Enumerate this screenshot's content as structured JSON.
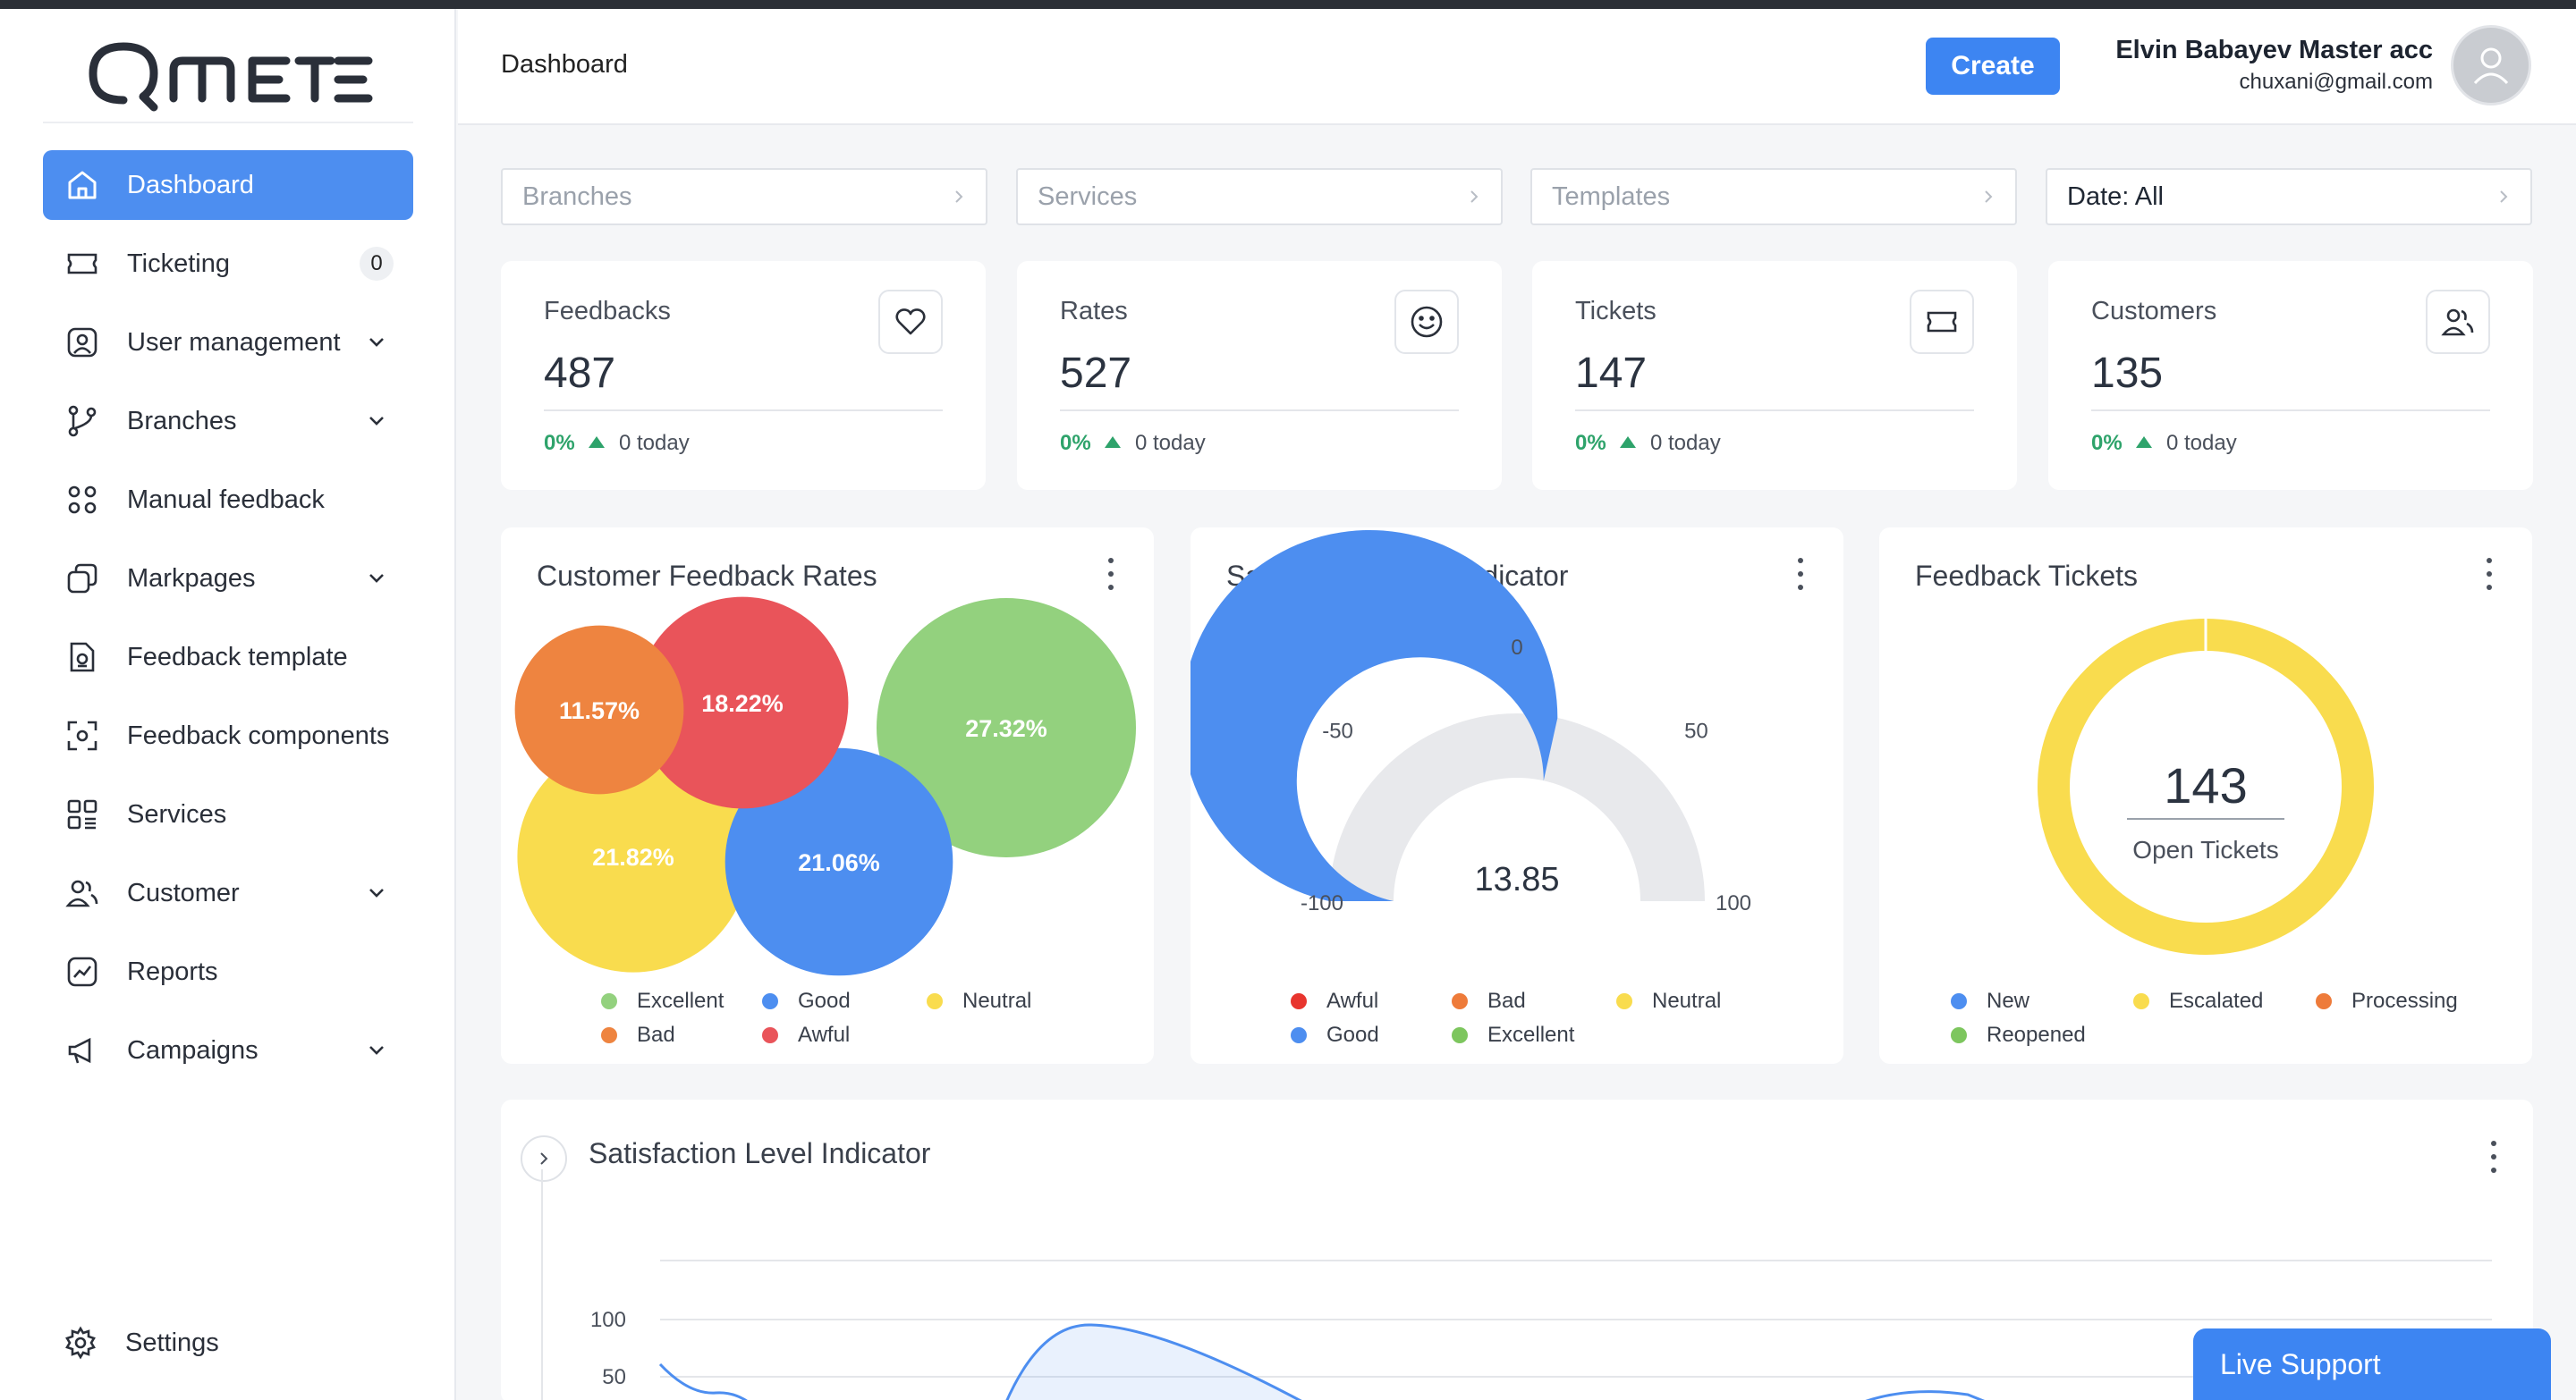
{
  "app": {
    "logo_text": "QMETER"
  },
  "sidebar": {
    "items": [
      {
        "label": "Dashboard",
        "icon": "home-icon",
        "active": true
      },
      {
        "label": "Ticketing",
        "icon": "ticket-icon",
        "badge": "0"
      },
      {
        "label": "User management",
        "icon": "user-icon",
        "expandable": true
      },
      {
        "label": "Branches",
        "icon": "branch-icon",
        "expandable": true
      },
      {
        "label": "Manual feedback",
        "icon": "grid-circles-icon"
      },
      {
        "label": "Markpages",
        "icon": "markpages-icon",
        "expandable": true
      },
      {
        "label": "Feedback template",
        "icon": "template-icon"
      },
      {
        "label": "Feedback components",
        "icon": "components-icon"
      },
      {
        "label": "Services",
        "icon": "services-icon"
      },
      {
        "label": "Customer",
        "icon": "customer-icon",
        "expandable": true
      },
      {
        "label": "Reports",
        "icon": "reports-icon"
      },
      {
        "label": "Campaigns",
        "icon": "megaphone-icon",
        "expandable": true
      }
    ],
    "settings_label": "Settings"
  },
  "header": {
    "title": "Dashboard",
    "create_label": "Create",
    "user_name": "Elvin Babayev Master acc",
    "user_email": "chuxani@gmail.com"
  },
  "filters": [
    {
      "label": "Branches",
      "placeholder": true
    },
    {
      "label": "Services",
      "placeholder": true
    },
    {
      "label": "Templates",
      "placeholder": true
    },
    {
      "label": "Date: All",
      "placeholder": false
    }
  ],
  "stats": [
    {
      "title": "Feedbacks",
      "value": "487",
      "pct": "0%",
      "today": "0 today",
      "icon": "heart-icon"
    },
    {
      "title": "Rates",
      "value": "527",
      "pct": "0%",
      "today": "0 today",
      "icon": "smile-icon"
    },
    {
      "title": "Tickets",
      "value": "147",
      "pct": "0%",
      "today": "0 today",
      "icon": "ticket-icon"
    },
    {
      "title": "Customers",
      "value": "135",
      "pct": "0%",
      "today": "0 today",
      "icon": "customers-icon"
    }
  ],
  "colors": {
    "excellent": "#93d17e",
    "good": "#4d8ef0",
    "neutral": "#f9dc4e",
    "bad": "#ee8440",
    "awful": "#e9545a",
    "gauge_bg": "#e8e9ec",
    "accent": "#3d85f2"
  },
  "chart_data": [
    {
      "type": "bubble",
      "title": "Customer Feedback Rates",
      "series": [
        {
          "name": "Excellent",
          "value": 27.32,
          "label": "27.32%"
        },
        {
          "name": "Good",
          "value": 21.06,
          "label": "21.06%"
        },
        {
          "name": "Neutral",
          "value": 21.82,
          "label": "21.82%"
        },
        {
          "name": "Bad",
          "value": 11.57,
          "label": "11.57%"
        },
        {
          "name": "Awful",
          "value": 18.22,
          "label": "18.22%"
        }
      ],
      "legend": [
        "Excellent",
        "Good",
        "Neutral",
        "Bad",
        "Awful"
      ]
    },
    {
      "type": "gauge",
      "title": "Satisfaction Level Indicator",
      "value": 13.85,
      "value_label": "13.85",
      "min": -100,
      "max": 100,
      "ticks": [
        "-100",
        "-50",
        "0",
        "50",
        "100"
      ],
      "legend": [
        "Awful",
        "Bad",
        "Neutral",
        "Good",
        "Excellent"
      ]
    },
    {
      "type": "donut",
      "title": "Feedback Tickets",
      "center_value": "143",
      "center_label": "Open Tickets",
      "series": [
        {
          "name": "New",
          "value": 0
        },
        {
          "name": "Escalated",
          "value": 143
        },
        {
          "name": "Processing",
          "value": 0
        },
        {
          "name": "Reopened",
          "value": 0
        }
      ],
      "legend": [
        "New",
        "Escalated",
        "Processing",
        "Reopened"
      ]
    },
    {
      "type": "line",
      "title": "Satisfaction Level Indicator",
      "y_ticks": [
        "100",
        "50"
      ]
    }
  ],
  "live_support_label": "Live Support"
}
